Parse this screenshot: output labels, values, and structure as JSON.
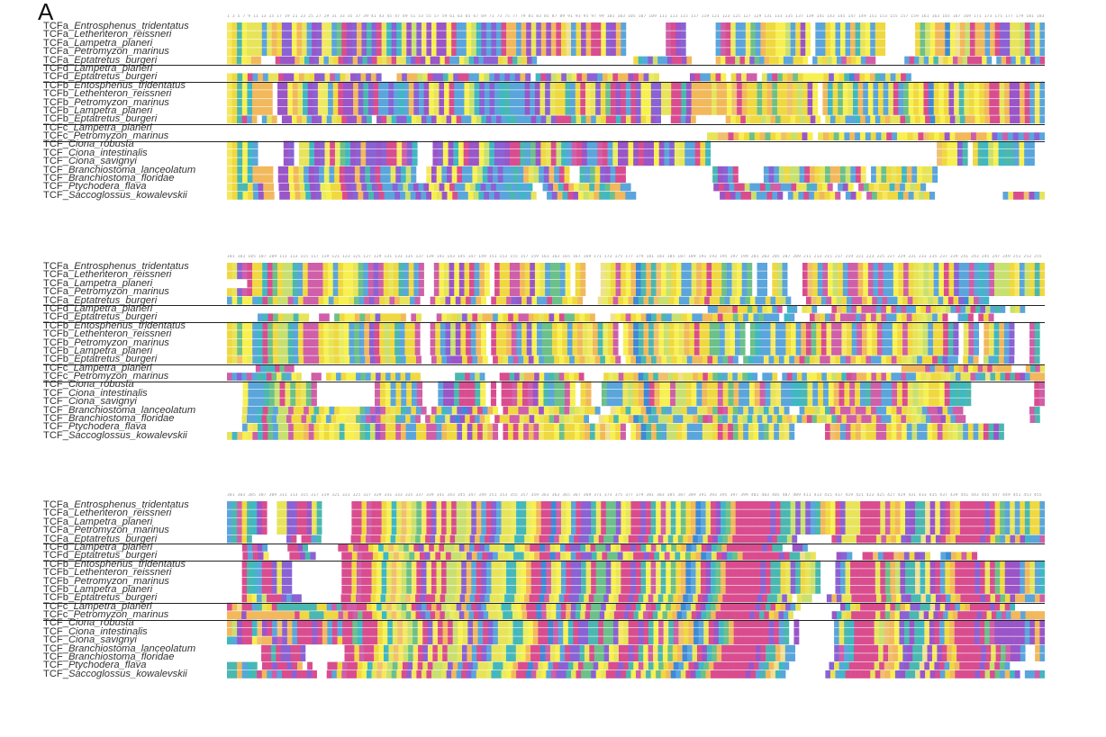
{
  "panel_label": "A",
  "palette": {
    "K": "#d94d8f",
    "R": "#d94d8f",
    "H": "#cf5fa8",
    "D": "#9a55c8",
    "E": "#8a62d4",
    "S": "#5aa5dc",
    "T": "#5aa5dc",
    "N": "#3fb8c4",
    "Q": "#4ab8b0",
    "A": "#e8e45a",
    "G": "#f2b85c",
    "P": "#f0d840",
    "V": "#c8e070",
    "L": "#f7f050",
    "I": "#e8ec60",
    "M": "#f5e860",
    "F": "#f0c070",
    "Y": "#6cc08a",
    "W": "#3c8ad8",
    "C": "#f0e090",
    "gap": "#ffffff"
  },
  "groups": [
    [
      "TCFa",
      "TCFa",
      "TCFa",
      "TCFa",
      "TCFa"
    ],
    [
      "TCFd",
      "TCFd"
    ],
    [
      "TCFb",
      "TCFb",
      "TCFb",
      "TCFb",
      "TCFb"
    ],
    [
      "TCFc",
      "TCFc"
    ],
    [
      "TCF",
      "TCF",
      "TCF",
      "TCF",
      "TCF",
      "TCF",
      "TCF"
    ]
  ],
  "species": [
    [
      "Entrosphenus_tridentatus",
      "Lethenteron_reissneri",
      "Lampetra_planeri",
      "Petromyzon_marinus",
      "Eptatretus_burgeri"
    ],
    [
      "Lampetra_planeri",
      "Eptatretus_burgeri"
    ],
    [
      "Entosphenus_tridentatus",
      "Lethenteron_reissneri",
      "Petromyzon_marinus",
      "Lampetra_planeri",
      "Eptatretus_burgeri"
    ],
    [
      "Lampetra_planeri",
      "Petromyzon_marinus"
    ],
    [
      "Ciona_robusta",
      "Ciona_intestinalis",
      "Ciona_savignyi",
      "Branchiostoma_lanceolatum",
      "Branchiostoma_floridae",
      "Ptychodera_flava",
      "Saccoglossus_kowalevskii"
    ]
  ],
  "blocks": [
    {
      "ruler": "1 3 5 7 9 11 13 15 17 19 21 23 25 27 29 31 33 35 37 39 41 43 45 47 49 51 53 55 57 59 61 63 65 67 69 71 73 75 77 79 81 83 85 87 89 91 93 95 97 99 101 103 105 107 109 111 113 115 117 119 121 123 125 127 129 131 133 135 137 139 141 143 145 147 149 151 153 155 157 159 161 163 165 167 169 171 173 175 177 179 181 183 185 187 189 191 193 195 197",
      "rows": [
        "MPQLAAATAGPEELGASDEMISYKDEGEQEKANENADVEMDLDDLKSSLVNESESRGGSGDAEGDGRPCTPDGRRLEDGS--------HRDE------SHKISSMYTGPPLLVSPDL-STPLSLSGQALSPP------PYVLGGWLCGVRGGSGREEAAVRSMS",
        "MPQLAAATAGPEELGASDEMISYKDEGEQEKANENADVEMDLDDLKSSLVNESESRGGSGDAEGDGRPCTPDGRRLEDGS--------HRDE------SHKISSMYTGPPLLVSPDL-STPLSLSGQALSPP------PYVLGGWLCGVRGGSGREEAAVRSMS",
        "MPQLAAATAGPEELGASDEMISYKDEGEQEKANENADVEMDLDDLKSSLVNESESRGGSGDAEGDGRPCTPDGRRLEDGS--------HRDE------SHKISSMYTGPPLLVSPDL-STPLSLSGQALSPP------PYVLGGWLCGVRGGSGREEAAVRSMS",
        "MPQLAAATAGPEELGASDEMISYKDEGEQEKANENADVEMDLDDLKSSLVNESESRGGSGDAEGDGRPCTPDGRRLEDGS--------HRDE------SHKISSMYTGPPLLVSPDL-STPLSLSGQALSPP------PYVLGGWLCGVRGGSGREEAAVRSMS",
        "MPQLMGG---RDDDGANDEMSAPKDEGEQEKPAGKAATERDLDDLKSSLVNESEEEPARQVPDS--------------------PNTEVSTDRKDG-----GLKKVRMEYSGPPLTSPPL-SAPVLSHGPLSHH------TKTVSLQCPLHGVRKKLT-TGKSLTLESR"
      ]
    },
    {
      "rows": [
        "------------------------------------------------------------------------------------------------------------------------------------------------------------------",
        "MPQLRTGSAARDDLGAPDEMHTPCDEGEGE---GEGGVAREEQAEKKSSLVSETESEGE-NKEVAEVMKGEESGARGGDRGEIA------DKSSPRL-PHMHH-ATRYPGYPLLLLPELPQWHPLGQSASARS--------------------------"
      ]
    },
    {
      "rows": [
        "MPQLNGGGG-DDLGANDEMISPKDDGEQEKTSETNSGESDLADLKSSLVNESETNQSSSDSDAEAPPQSPRMAEPYRDKSRELLEEAAKRQDGGGGAGGLFRGPPYPGYPPFPVPDL-GNPYLANGSLSPSARSYLPLKWPLPDMQAPLPGRKAGDDGRSMS",
        "MPQLNGGGG-DDLGANDEMISPKDDGEQEKTSETNSGESDLADLKSSLVNESETNQSSSDSDAEAPPQSPRMAEPYRDKSRELLEEAAKRQDGGGGAGGLFRGPPYPGYPPFPVPDL-GNPYLANGSLSPSARSYLPLKWPLPDMQAPLPGRKAGDDGRSMS",
        "MPQLNGGGG-DDLGANDEMISPKDDGEQEKTSETNSGESDLADLKSSLVNESETNQSSSDSDAEAPPQSPRMAEPYRDKSRELLEEAAKRQDGGGGAGGLFRGPPYPGYPPFPVPDL-GNPYLANGSLSPSARSYLPLKWPLPDMQAPLPGRKAGDDGRSMS",
        "MPQLNGGGG-DDLGANDEMISPKDDGEQEKTSETNSGESDLADLKSSLVNESETNQSSSDSDAEAPPQSPRMAEPYRDKSRELLEEAAKRQDGGGGAGGLFRGPPYPGYPPFPVPDL-GNPYLANGSLSPSARSYLPLKWPLPDMQAPLPGRKAGDDGRSMS",
        "MPQRSG-TAG-DDLGATDEMSAPKDDGEQ-DKVNEENLAESDLADLKSSLVNESETNQSSSDSEVERRRQAQGSAPRRNKAREPLDE--KRSDG------GLPRAPPVAGYPPLPVPDL-ASPATTNGSLSPGAARYLPLKWPLPDVQGGLPGRKAGDDGRSMS"
      ]
    },
    {
      "rows": [
        "------------------------------------------------------------------------------------------------------------------------------------------------------------------",
        "-------------------------------------------------------------------------------------------AAFFKGLPYPGYPLFPVPDL-AGPYLSGSLSPSARTLLPMKFPLPDLGGGHGGLETHSETHSET"
      ]
    },
    {
      "rows": [
        "MPQLNS-----DE-AANDEMKIYNDEGEEDEKRMHEN---DELDNLKDDLVNEEDRRQSYDPAKVNSHRDSSHRSIDDLDKDDLDSEIASSRPN--------------------------------------------FPLLEQ-PQNVLNQQSLSS--",
        "MPQLNS-----DE-AANDEMKIYNDEGEEDEKRMHEN---DELDNLKDDLVNEEDRRQSYDPAKVNSHRDSSHRSIDDLDKDDLDSEIASSRPN--------------------------------------------FPLLEQ-PQNVLNQQSLSS--",
        "MPQLNS-----DE-AANDEMKIYNDEGEEDEKRMHEN---DELDNLKDDLVNEEDRRQSYDPAKVNSHRDSSHRSIDDLDKDDLDSEIASSRPN--------------------------------------------FPLLEQ-PQNVLNQQSLSS--",
        "MPQLNGGGG-DDLGASDETISPKDDGEQEKSSAENVS--MDLSDLKSSLVNESESSQSGAVSEGSRP--QSYPEDSRR-----------------QDESK-----SESVPVVSRGPAYGGYVSKM-SMYPAPNGSLAAS---------------------",
        "MPQLNGGGG-DDLGASDETISPKDDGEQEKSSAENVS--MDLSDLKSSLVNESESSQSGAVSEGSRP--QSYPEDSRR-----------------QDESK-----SESVPVVSRGPAYGGYVSKM-SMYPAPNGSLAAS---------------------",
        "MPQQPSDGG-DDLGANDEILPPKDEGEQEKSSESVSDTDLADLKSSLVNESESSQSNTN--SEGNKGLVPQGNYGGSS----------------DRDSKKVSSKNHHTTKAAQTPLH-SDL-HYPMPPNGSMVPS-----------------------",
        "MPQLPSDGG-DDLGANDEILPPKDEGEQEKSSESVSDTDLADLKSSLVNESESSQSNSA--SEGNKDLVAGQNYGGSS----------------DRDSKKVSSKTD-TATKTPGPLH-SDL-HYPMPPNGSMVPS-------------SMKRFDSA"
      ]
    }
  ],
  "ruler2": "101 103 105 107 109 111 113 115 117 119 121 123 125 127 129 131 133 135 137 139 141 143 145 147 149 151 153 155 157 159 161 163 165 167 169 171 173 175 177 179 181 183 185 187 189 191 193 195 197 199 201 203 205 207 209 211 213 215 217 219 221 223 225 227 229 231 233 235 237 239 241 243 245 247 249 251 253 255 257 259 261 263 265 267 269 271 273 275 277 279 281 283 285 287 289 291 293 295 297 299",
  "ruler3": "301 303 305 307 309 311 313 315 317 319 321 323 325 327 329 331 333 335 337 339 341 343 345 347 349 351 353 355 357 359 361 363 365 367 369 371 373 375 377 379 381 383 385 387 389 391 393 395 397 399 401 403 405 407 409 411 413 415 417 419 421 423 425 427 429 431 433 435 437 439 441 443 445 447 449 451 453 455 457 459 461 463 465 467 469 471 473 475 477 479 481 483 485 487 489 491 493 495 497 499",
  "blocks2": [
    [
      "PAEHKPPNKYPVVQSPHHHPLTPLLAYSHEHPAPQTPSH--HLADLDPKTGL-RPPHHGPDLASYYSL-PG---CIPHPLGWQGQFLVPLSTAGPRPPYTALTY-ST-PVS---RFPSHLVPSHHGLHTHTSLPHPAIVASLKPESSHSNSHVVVPMSVPQP",
      "PAEHKPPNKYPVVQSPHHHPLTPLLAYSHEHPAPQTPSH--HLADLDPKTGL-RPPHHGPDLASYYSL-PG---CIPHPLGWQGQFLVPLSTAGPRPPYTALTY-ST-PVS---RFPSHLVPSHHGLHTHTSLPHPAIVASLKPESSHSNSHVVVPMSVPQP",
      "----KPPNKYPVVQSPHHHPLTPLLAYSHEHPAPQTPSH--HLADLDPKTGL-RPPHHGPDLASYYSL-PG---CIPHPLGWQGQFLVPLSTAGPRPPYTALTY-ST-PVS---RFPSHLVPSHHGLHTHTSLPHPAIVASLKPESSHSNSHVVVPMSVPQP",
      "PAEHKPPNKYPVVQSPHHHPLTPLLAYSHEHPAPQTPSH--HLADLDPKTGL-RPPHHGPDLASYYSL-PG---CIPHPLGWQGQFLVPLSTAGPRPPYTALTY-ST-PVS---RFPSHLVPSHHGLHTHTSLPHPAIVASLKPESSHSNSHVVVPMSVPQP",
      "SLQLLSNKYPVVHSPHHHPLTPLLAYSHEHPAHGAASH--HLADLDPKTGL-RPPHEDPDLTSRYYPLPG---CIPHPLGWQGQFVVPLSTAGPRPPYTALTYLSSPTPVS---RFPSHLVPSHHGLHTHTSLPHPAIVASLKPEWAHSN-----------"
    ],
    [
      "-------------------------------------------------------------------------------------------------TTGGFRPPYPSALTH-NT-AMS---RFPSHMHHHSHLHTHTSLPHPAIVTHSVKQEVTQS-VAS----",
      "------SNKYPVVQAA--HH-YPLLGYGAEPPPPG-HA---HLAPVEAKAGGSLPRPHHGPAPDLRYYPLPG---CLPHPLGWQGQSVVPLSSGGPRPPYPSLTYSST-NT---RFPSHMHHHSHLHAHTSLPHPAIVSIK--SNK-RPH----------"
    ],
    [
      "PAYLLSNKYPVVQSPHHHPLAPILTYSGERPVPQTPPH--HPTEVDPKTGL-RPPGHTPELSYYPLPSPGAMGQIPH-LGWQGQFLVPLAGPRPPYYTALTY-YNSSMSSPLSGRYPRMHHMPSHGLPHTSLPHPAIVTPPKQE-AHS-GANGSE---HQ-",
      "PAYLLSNKYPVVQSPHHHPLAPILTYSGERPVPQTPPH--HPTEVDPKTGL-RPPGHTPELSYYPLPSPGAMGQIPH-LGWQGQFLVPLAGPRPPYYTALTY-YNSSMSSPLSGRYPRMHHMPSHGLPHTSLPHPAIVTPPKQE-AHS-GANGSE---HQ-",
      "PAYLLSNKYPVVQSPHHHPLAPILTYSGERPVPQTPPH--HPTEVDPKTGL-RPPGHTPELSYYPLPSPGAMGQIPH-LGWQGQFLVPLAGPRPPYYTALTY-YNSSMSSPLSGRYPRMHHMPSHGLPHTSLPHPAIVTPPKQE-AHS-GANGSE---HQ-",
      "PAYLLSNKYPVVQSPHHHPLAPILTYSGERPVPQTPPH--HPTEVDPKTGL-RPPGHTPELSYYPLPSPGAMGQIPH-LGWQGQFLVPLAGPRPPYYTALTY-YNSSMSSPLSGRYPRMHHMPSHGLPHTSLPHPAIVTPPKQE-AHS-GANGSE---HQ-",
      "PAFLISNKYPVVQSPHHHPLAPILSYSGERPVPQTPPH--HPTEDDPKTGL-RPATHTPDLSYYPLPSPGAMGQLPH-LGWQGQFLVPLATGGPRPSYHT-YNTSMSPSLSGRYPAHHMPSHGLPHTSLPHPAIVTPPKQESS-PSG-VSNGTE---HQ-"
    ],
    [
      "------HSQNKYHH-------------------------------------------------------------------------------------------------------------------------------GGGGGHSGGHSPGHLPHGRFGGG---GQHA",
      "HSETHSQNKYMQSLA--HH-PLSPLLTYSAEPTPTPTPP-------QQKTVT---RRQDVGGDLSQYHPLPR----PIAHPPGWQGQFFVPCAAGPRPYQTATAYNS-SSP-SRSPSLLPSLVPNRHGGLHPHLTTHSTLAMPPAIVTAAHSQCQPQRQRDTGGG"
    ],
    [
      "---LSSSQYVRAYPAYH-----------HPLTPTPSH---TDDQKRKQL-R-RRHPRHDLQSYYHL-PG--YSTTAVPGWRGLLHVVPLTGPPHPYGSSLGHSAMSSNNQATPSLGRPHPSQHHSTHPRAVALPPLKNQNQ------------KH",
      "---LSSSQYVRAYPAYH-----------HPLTPTPSH---TDDQKRKQL-R-RRHPRHDLQSYYHL-PG--YSTTAVPGWRGLLHVVPLTGPPHPYGSSLGHSAMSSNNQATPSLGRPHPSQHHSTHPRAVALPPLKNQNQ------------KH",
      "---LSSSQYVRAYPAYH-----------HPLTPTPSH---TDDQKRKQL-R-RRHPRHDLQSYYHL-PG--YSTTAVPGWRGLLHVVPLTGPPHPYGSSLGHSAMSSNNQATPSLGRPHPSQHHSTHPRAVALPPLKNQNQ------------KH",
      "---ATSNKYSVVHPPHPQPLTPLLMMYSHEHPAPQTPSH-HPNSIEWDPKTGL-RPPHHAPDLAPYHVAIPPS--CLPQLLGWQGQSVVPTSAAGYRHPYTATAVNASMS--TPPVLQHPHHGHHPHTSLPHPAIVSHHDPSHH-------------HQ-",
      "---ATSNKYSVVHPPHPQPLTPLLMMYSHEHPAPQTPSH-HPNSIEWDPKTGL-RPPHHAPDLAPYHVAIPPS--CLPQLLGWQGQSVVPTSAAGYRHPYTATAVNATMTPQPFLSGRYPVLQHPHHGHHPHTSLPHPAIVSHHDPSHH-------------HQ-",
      "---SMANKYSVVHPPGHPLPLAQLLMYNVDHPPHGTTPPHHSGPPELDPKAGH-RPRMHGHMPPLYPPLPGQMGCLPH-LGWQGQSVVPMTTTAAPRGRYPTALTYMTAMT------KFGSHPGMPPHHPLGLSVTSLPHPAIVTPSAKQDQ--------",
      "ANFLMHNKYSVVHPPGHPLPLAQLLMYNVDHPPHGTTPPHHSGPPELDPKAGH-RPRMHGHMPPLYPPLPGQMGCLPH-LGWQGQSVVPMTTTAAPRGRYPTALTYMTAMT------KFGSHPGMPPHHPLGLSVTSLPHPAIVTPSAKQDQ--------"
    ]
  ],
  "blocks3": [
    [
      "SQHPQNDK--AAEEKRDAQ------KKPHKKPLNAFMVYMKEMRAKVVAEGTKESAAINQILGRRWHALSREEQAKYYELARKERQLHMQLYPGWSARDNYGKKKKRKREKQQVEVESQGPLKEAAAKKRRAHPGLEDQQCDMDKGPRRKKKEKPYSASPQPPS",
      "SQHPQNDK--AAEEKRDAQ------KKPHKKPLNAFMVYMKEMRAKVVAEGTKESAAINQILGRRWHALSREEQAKYYELARKERQLHMQLYPGWSARDNYGKKKKRKREKQQVEVESQGPLKEAAAKKRRAHPGLEDQQCDMDKGPRRKKKEKPYSASPQPPS",
      "SQHPQNDK--AAEEKRDAQ------KKPHKKPLNAFMVYMKEMRAKVVAEGTKESAAINQILGRRWHALSREEQAKYYELARKERQLHMQLYPGWSARDNYGKKKKRKREKQQVEVESQGPLKEAAAKKRRAHPGLEDQQCDMDKGPRRKKKEKPYSASPQPPS",
      "SQHPQNDK--AAEEKRDAQ------KKPHKKPLNAFMVYMKEMRAKVVAEGTKESAAINQILGRRWHALSREEQAKYYELARKERQLHMQLYPGWSARDNYGKKKKRKREKQQVEVESQGPLKEAAAKKRRAHPGLEDQQCDMDKGPRRKKKEKPYSASPQPPS",
      "SQHPQ-------EK-KKSQ------KKPHKKPLNAFMVYMKEMRAKVVAEGTKESAAINQILGRRWHALSREEQAKYYELARKERQLHMQLYPGWSARDNYGKKKKRKREKQQVE-------KEAAAKKRRAHPGLEDQQCDMDKGPRRKKKEKPYSPEGDNSSH"
    ],
    [
      "---KSHDS----KKDQ------KKPHKKPLNAFMVYMKEMRAKVVAEGTKESAAINQILGRRWHALSREEQAKYYELARKERQLHMQLYPGWSARDNYGKKKKRKREKQQ--DDS-----------------------------------------------",
      "---KSKDM----KKDQE-----KKPHKKPLNAFMVYMKEMRAKVVAEGTKESAAINQILGRRWHALSREEQAKYYELARKERQLHMQLYPGWSARDNYGKKKKRKREKQQCVA----DES--KKFSRRFGEPDEA--SWGPHPR-------------"
    ],
    [
      "---KQNSKKEAEE----------KKPHKKPLNAFMVYMKEMRAKVVAEGTKESAAINQILGRRWHALSREEQAKYYELARKERQLHMQLYPGWSARDNYGKKKKRKREKQQPAEQPAVQ---ESAKKKRRARYGVDQQCNMDKSPGRRKKEKARYPDDDSGASN",
      "---KQNSKKEAEE----------KKPHKKPLNAFMVYMKEMRAKVVAEGTKESAAINQILGRRWHALSREEQAKYYELARKERQLHMQLYPGWSARDNYGKKKKRKREKQQPAEQPAVQ---ESAKKKRRARYGVDQQCNMDKSPGRRKKEKARYPDDDSGASN",
      "---KQNSKKEAEE----------KKPHKKPLNAFMVYMKEMRAKVVAEGTKESAAINQILGRRWHALSREEQAKYYELARKERQLHMQLYPGWSARDNYGKKKKRKREKQQPAEQPAVQ---ESAKKKRRARYGVDQQCNMDKSPGRRKKEKARYPDDDSGASN",
      "---KQNSKKEAEE----------KKPHKKPLNAFMVYMKEMRAKVVAEGTKESAAINQILGRRWHALSREEQAKYYELARKERQLHMQLYPGWSARDNYGKKKKRKREKQQPAEQPAVQ---ESAKKKRRARYGVDQQCNMDKSPGRRKKEKARYPDDDSGASN",
      "---KPLSVKKKETEE--------KKPHKKPLNAFMVFMKEKRAKVVAEGTKESAAINQILGRRWHALSREEQAKYYELARKERQLHMQLYPGWSARDNYGKKKKRKREKQQVEA-AVV---EGEAAKKKRRARYGLEDQQCNMDKSPGRRKKEKARYPDGGSTGH"
    ],
    [
      "RGCRRTQAPRQQQQQQQQPPTHQKHHKKPLNAFMVYMKETRGRVIAEGTKESAAINQILGRRWHALTRGEQAKYYELARKERQLHRQLYPGWSARDNYGKKKKRKREKQRPGETA--------DNAPKKKRRARYGLEEQQCDMDKSPGRRKKERARN------",
      "GGGDGGGGGGGGGGRPPQQQPPPHGKHYKKPLNAFMVYMKETRGRVIAEGTKESAAINQILGRRWHALTRGEQAKYYELARKERQLHRQLYPGWSARDNYGKKKKRKREKQRPGETA--------DNAPKKKRRARYGLEEQQCDMDKSPGRRKKERARNHSGGSGGGG"
    ],
    [
      "GVDKKNFDRTFEGSKKREKGTKSRRYNRKKPLNAFMVYMKEMRGKVLAEGSKESAAINQILGRRWHSLNREEQQKYYEMAKKEKQLHMQHFPGWSARDNYGKKKKRKKEKTQ-D-------TAQNKKRRAVFGLEQDQNMDKSPGRRKKERYHDDDDDDSDGD",
      "GVDKKNFDRTFEGSKKREKGTKSRRYNRKKPLNAFMVYMKEMRGKVLAEGSKESAAINQILGRRWHSLNREEQQKYYEMAKKEKQLHMQHFPGWSARDNYGKKKKRKKEKTQ-D-------TAQNKKRRAVFGLEQDQNMDKSPGRRKKERYHDDDDDDSDGD",
      "NSDKKLFGGEHEGSKKRDKGTKPRRYNRKKPLNAFMVYMKEMRGKVLAEGSKESAAINQILGRRWHSLNREEQQKYYEMAKKEKQLHMQHFPGWSARDNYGKKKKRKKEKTQ-D-------TAQNKKRRAVFGLEQDQNMDKSPGRRKKERYHDDDDDDSDGD",
      "-------KKQKEEKKE--------KKPHKKPLNAFMVYMKEMRAKVVAEGTKESAAINQILGRRWHALSREEQAKYYELARKERQLHMQLYPGWSARDNYGKKKKRKRDKQQGCTS--------EHSNKKKRRARFGLEDQQCDMDKGPRRKKKEKARYHDDS--GS",
      "-------KKQKEEKKE--------KKPHKKPLNAFMVYMKEMRAKVVAEGTKESAAINQILGRRWHALSREEQAKYYELARKERQLHMQLYPGWSARDNYGKKKKRKRDKQQGCTS--------EHSNKKKRRARFGLEDQQCDMDKGPRRKKKEKARYHDDS--GS",
      "QQGSNQ-KKEKKEKG-K---KKPHKKPLNAFMVYMKEMRAKVVAEGTKESAAINQILGRRWHALSREEQAKYYELARKERQLHMQLYPGWSARDNYGKKKKRKRDKSQGCNS--------EASNKKKRRARFGLEDQQCDMDKSPGRRKKEKVRYS-------",
      "QQGSNQRGSHSKKEKKEK--KTPHKKPLNAFMVYMKEMRAKVVAEGTKESAAINQILGRRWHALTHEEQAKYYELARKERQLHMQLYPGWSARDNYGKKKKRKRDKSQGCNS--------EASNKKKRRARFGLEDQQCDMDKSPGRRKKEKVRYSGNE-TSHN"
    ]
  ]
}
